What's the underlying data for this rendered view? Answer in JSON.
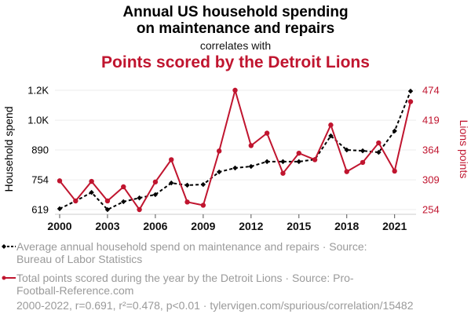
{
  "header": {
    "title_line1": "Annual US household spending",
    "title_line2": "on maintenance and repairs",
    "subtitle": "correlates with",
    "title2": "Points scored by the Detroit Lions"
  },
  "legend": {
    "series1_text": "Average annual household spend on maintenance and repairs · Source: Bureau of Labor Statistics",
    "series2_text": "Total points scored during the year by the Detroit Lions · Source: Pro-Football-Reference.com"
  },
  "footer": {
    "stats": "2000-2022, r=0.691, r²=0.478, p<0.01 · tylervigen.com/spurious/correlation/15482"
  },
  "colors": {
    "series1": "#000000",
    "series2": "#c0152f",
    "grid": "#eeeeee",
    "legend_text": "#9a9a9a"
  },
  "chart_data": {
    "type": "line",
    "title": "Annual US household spending on maintenance and repairs correlates with Points scored by the Detroit Lions",
    "x": [
      2000,
      2001,
      2002,
      2003,
      2004,
      2005,
      2006,
      2007,
      2008,
      2009,
      2010,
      2011,
      2012,
      2013,
      2014,
      2015,
      2016,
      2017,
      2018,
      2019,
      2020,
      2021,
      2022
    ],
    "xlim": [
      2000,
      2022
    ],
    "x_ticks": [
      2000,
      2003,
      2006,
      2009,
      2012,
      2015,
      2018,
      2021
    ],
    "x_tick_labels": [
      "2000",
      "2003",
      "2006",
      "2009",
      "2012",
      "2015",
      "2018",
      "2021"
    ],
    "grid": true,
    "legend_position": "bottom",
    "series": [
      {
        "name": "Average annual household spend on maintenance and repairs",
        "axis": "left",
        "style": "dashed-diamond",
        "color": "#000000",
        "values": [
          623,
          658,
          697,
          619,
          655,
          672,
          687,
          740,
          730,
          733,
          790,
          808,
          815,
          837,
          837,
          837,
          847,
          954,
          890,
          886,
          879,
          976,
          1157
        ]
      },
      {
        "name": "Total points scored during the year by the Detroit Lions",
        "axis": "right",
        "style": "solid-dot",
        "color": "#c0152f",
        "values": [
          307,
          270,
          306,
          270,
          296,
          254,
          305,
          346,
          268,
          262,
          362,
          474,
          372,
          395,
          321,
          358,
          346,
          410,
          324,
          341,
          377,
          325,
          453
        ]
      }
    ],
    "y_left": {
      "label": "Household spend",
      "ylim": [
        619,
        1161
      ],
      "ticks": [
        619,
        754,
        890,
        1025,
        1161
      ],
      "tick_labels": [
        "619",
        "754",
        "890",
        "1.0K",
        "1.2K"
      ]
    },
    "y_right": {
      "label": "Lions points",
      "ylim": [
        254,
        474
      ],
      "ticks": [
        254,
        309,
        364,
        419,
        474
      ],
      "tick_labels": [
        "254",
        "309",
        "364",
        "419",
        "474"
      ]
    }
  }
}
